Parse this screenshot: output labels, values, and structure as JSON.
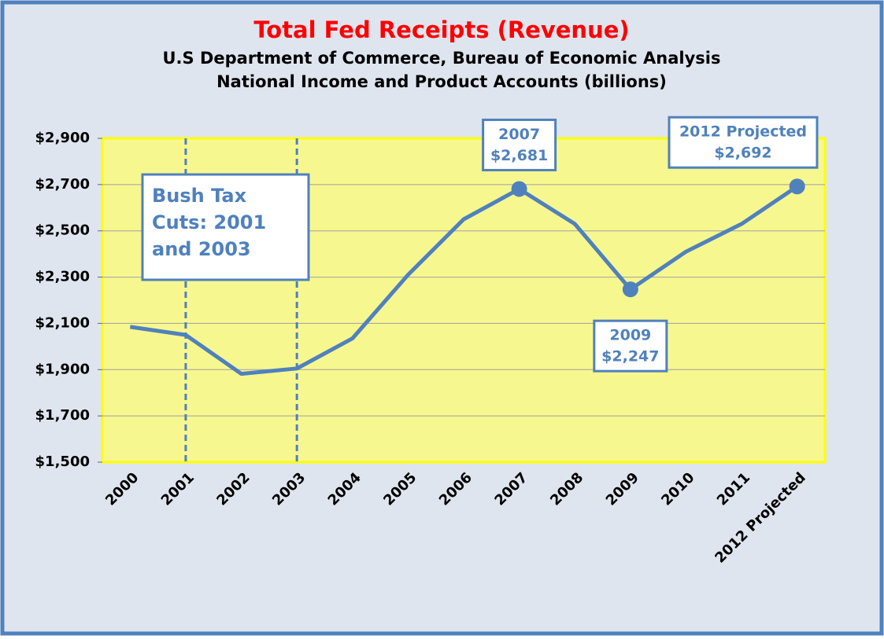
{
  "chart_data": {
    "type": "line",
    "title": "Total Fed Receipts (Revenue)",
    "subtitle": [
      "U.S Department of Commerce, Bureau of Economic Analysis",
      "National Income and Product Accounts (billions)"
    ],
    "categories": [
      "2000",
      "2001",
      "2002",
      "2003",
      "2004",
      "2005",
      "2006",
      "2007",
      "2008",
      "2009",
      "2010",
      "2011",
      "2012 Projected"
    ],
    "values": [
      2085,
      2050,
      1882,
      1905,
      2035,
      2310,
      2550,
      2681,
      2530,
      2247,
      2410,
      2530,
      2692
    ],
    "value_labels": [
      null,
      null,
      null,
      null,
      null,
      null,
      null,
      "$2,681",
      null,
      "$2,247",
      null,
      null,
      "$2,692"
    ],
    "color": "#4f81bd",
    "ylim": [
      1500,
      2900
    ],
    "yticks": [
      {
        "value": 1500,
        "label": "$1,500"
      },
      {
        "value": 1700,
        "label": "$1,700"
      },
      {
        "value": 1900,
        "label": "$1,900"
      },
      {
        "value": 2100,
        "label": "$2,100"
      },
      {
        "value": 2300,
        "label": "$2,300"
      },
      {
        "value": 2500,
        "label": "$2,500"
      },
      {
        "value": 2700,
        "label": "$2,700"
      },
      {
        "value": 2900,
        "label": "$2,900"
      }
    ],
    "grid": true,
    "vlines": [
      "2001",
      "2003"
    ],
    "annotation": [
      "Bush Tax",
      "Cuts: 2001",
      "and 2003"
    ]
  }
}
